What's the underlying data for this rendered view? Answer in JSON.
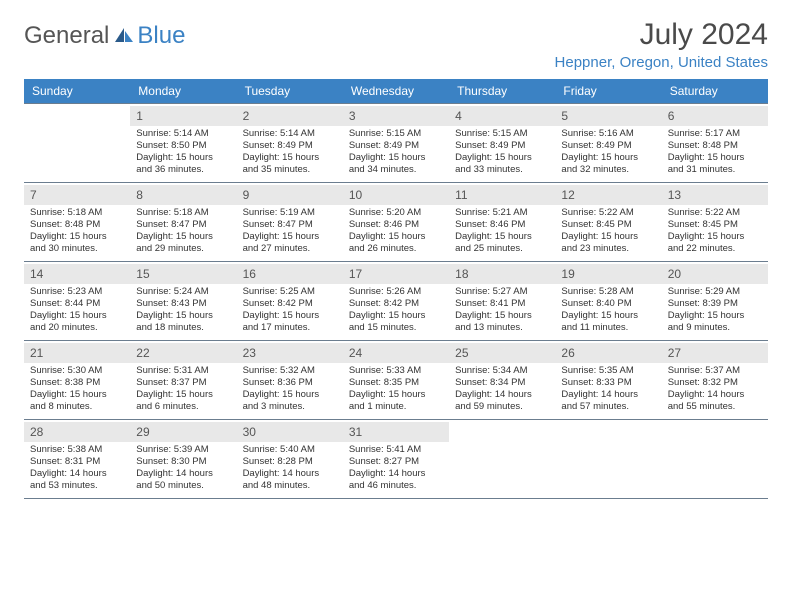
{
  "logo": {
    "part1": "General",
    "part2": "Blue"
  },
  "title": "July 2024",
  "location": "Heppner, Oregon, United States",
  "colors": {
    "header_bg": "#3b82c4",
    "daynum_bg": "#e8e8e8",
    "border": "#6b7d8f",
    "text": "#333333",
    "accent": "#3b82c4"
  },
  "weekdays": [
    "Sunday",
    "Monday",
    "Tuesday",
    "Wednesday",
    "Thursday",
    "Friday",
    "Saturday"
  ],
  "startOffset": 1,
  "days": [
    {
      "n": 1,
      "sunrise": "5:14 AM",
      "sunset": "8:50 PM",
      "daylight": "15 hours and 36 minutes."
    },
    {
      "n": 2,
      "sunrise": "5:14 AM",
      "sunset": "8:49 PM",
      "daylight": "15 hours and 35 minutes."
    },
    {
      "n": 3,
      "sunrise": "5:15 AM",
      "sunset": "8:49 PM",
      "daylight": "15 hours and 34 minutes."
    },
    {
      "n": 4,
      "sunrise": "5:15 AM",
      "sunset": "8:49 PM",
      "daylight": "15 hours and 33 minutes."
    },
    {
      "n": 5,
      "sunrise": "5:16 AM",
      "sunset": "8:49 PM",
      "daylight": "15 hours and 32 minutes."
    },
    {
      "n": 6,
      "sunrise": "5:17 AM",
      "sunset": "8:48 PM",
      "daylight": "15 hours and 31 minutes."
    },
    {
      "n": 7,
      "sunrise": "5:18 AM",
      "sunset": "8:48 PM",
      "daylight": "15 hours and 30 minutes."
    },
    {
      "n": 8,
      "sunrise": "5:18 AM",
      "sunset": "8:47 PM",
      "daylight": "15 hours and 29 minutes."
    },
    {
      "n": 9,
      "sunrise": "5:19 AM",
      "sunset": "8:47 PM",
      "daylight": "15 hours and 27 minutes."
    },
    {
      "n": 10,
      "sunrise": "5:20 AM",
      "sunset": "8:46 PM",
      "daylight": "15 hours and 26 minutes."
    },
    {
      "n": 11,
      "sunrise": "5:21 AM",
      "sunset": "8:46 PM",
      "daylight": "15 hours and 25 minutes."
    },
    {
      "n": 12,
      "sunrise": "5:22 AM",
      "sunset": "8:45 PM",
      "daylight": "15 hours and 23 minutes."
    },
    {
      "n": 13,
      "sunrise": "5:22 AM",
      "sunset": "8:45 PM",
      "daylight": "15 hours and 22 minutes."
    },
    {
      "n": 14,
      "sunrise": "5:23 AM",
      "sunset": "8:44 PM",
      "daylight": "15 hours and 20 minutes."
    },
    {
      "n": 15,
      "sunrise": "5:24 AM",
      "sunset": "8:43 PM",
      "daylight": "15 hours and 18 minutes."
    },
    {
      "n": 16,
      "sunrise": "5:25 AM",
      "sunset": "8:42 PM",
      "daylight": "15 hours and 17 minutes."
    },
    {
      "n": 17,
      "sunrise": "5:26 AM",
      "sunset": "8:42 PM",
      "daylight": "15 hours and 15 minutes."
    },
    {
      "n": 18,
      "sunrise": "5:27 AM",
      "sunset": "8:41 PM",
      "daylight": "15 hours and 13 minutes."
    },
    {
      "n": 19,
      "sunrise": "5:28 AM",
      "sunset": "8:40 PM",
      "daylight": "15 hours and 11 minutes."
    },
    {
      "n": 20,
      "sunrise": "5:29 AM",
      "sunset": "8:39 PM",
      "daylight": "15 hours and 9 minutes."
    },
    {
      "n": 21,
      "sunrise": "5:30 AM",
      "sunset": "8:38 PM",
      "daylight": "15 hours and 8 minutes."
    },
    {
      "n": 22,
      "sunrise": "5:31 AM",
      "sunset": "8:37 PM",
      "daylight": "15 hours and 6 minutes."
    },
    {
      "n": 23,
      "sunrise": "5:32 AM",
      "sunset": "8:36 PM",
      "daylight": "15 hours and 3 minutes."
    },
    {
      "n": 24,
      "sunrise": "5:33 AM",
      "sunset": "8:35 PM",
      "daylight": "15 hours and 1 minute."
    },
    {
      "n": 25,
      "sunrise": "5:34 AM",
      "sunset": "8:34 PM",
      "daylight": "14 hours and 59 minutes."
    },
    {
      "n": 26,
      "sunrise": "5:35 AM",
      "sunset": "8:33 PM",
      "daylight": "14 hours and 57 minutes."
    },
    {
      "n": 27,
      "sunrise": "5:37 AM",
      "sunset": "8:32 PM",
      "daylight": "14 hours and 55 minutes."
    },
    {
      "n": 28,
      "sunrise": "5:38 AM",
      "sunset": "8:31 PM",
      "daylight": "14 hours and 53 minutes."
    },
    {
      "n": 29,
      "sunrise": "5:39 AM",
      "sunset": "8:30 PM",
      "daylight": "14 hours and 50 minutes."
    },
    {
      "n": 30,
      "sunrise": "5:40 AM",
      "sunset": "8:28 PM",
      "daylight": "14 hours and 48 minutes."
    },
    {
      "n": 31,
      "sunrise": "5:41 AM",
      "sunset": "8:27 PM",
      "daylight": "14 hours and 46 minutes."
    }
  ]
}
